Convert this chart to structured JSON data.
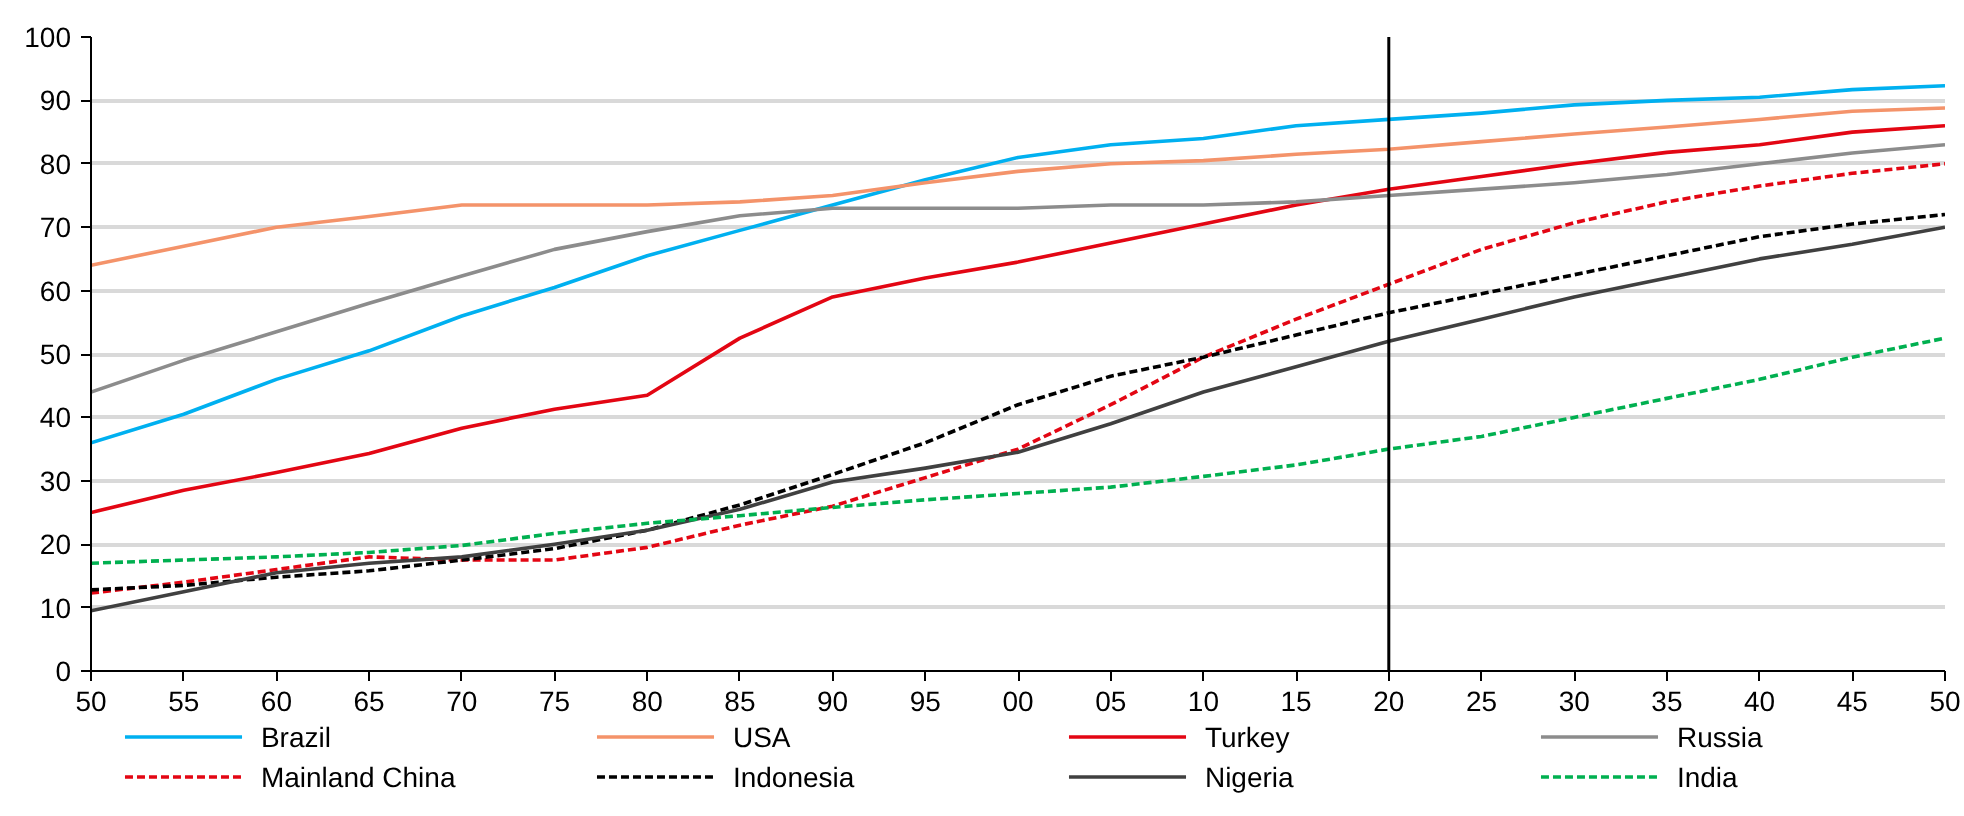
{
  "chart_data": {
    "type": "line",
    "x": [
      1950,
      1955,
      1960,
      1965,
      1970,
      1975,
      1980,
      1985,
      1990,
      1995,
      2000,
      2005,
      2010,
      2015,
      2020,
      2025,
      2030,
      2035,
      2040,
      2045,
      2050
    ],
    "series": [
      {
        "name": "Brazil",
        "color": "#00b0f0",
        "line_style": "solid",
        "values": [
          36,
          40.5,
          46,
          50.5,
          56,
          60.5,
          65.5,
          69.5,
          73.5,
          77.5,
          81,
          83,
          84,
          86,
          87,
          88,
          89.3,
          90,
          90.5,
          91.7,
          92.3
        ]
      },
      {
        "name": "USA",
        "color": "#f4936a",
        "line_style": "solid",
        "values": [
          64,
          67,
          70,
          71.7,
          73.5,
          73.5,
          73.5,
          74,
          75,
          77,
          78.8,
          80,
          80.5,
          81.5,
          82.3,
          83.5,
          84.7,
          85.8,
          87,
          88.3,
          88.8
        ]
      },
      {
        "name": "Turkey",
        "color": "#e30613",
        "line_style": "solid",
        "values": [
          25,
          28.5,
          31.3,
          34.3,
          38.3,
          41.3,
          43.5,
          52.5,
          59,
          62,
          64.5,
          67.5,
          70.5,
          73.5,
          76,
          78,
          80,
          81.8,
          83,
          85,
          86
        ]
      },
      {
        "name": "Russia",
        "color": "#8c8c8c",
        "line_style": "solid",
        "values": [
          44,
          49,
          53.5,
          58,
          62.3,
          66.5,
          69.3,
          71.8,
          73,
          73,
          73,
          73.5,
          73.5,
          74,
          75,
          76,
          77,
          78.3,
          80,
          81.7,
          83
        ]
      },
      {
        "name": "Mainland China",
        "color": "#e30613",
        "line_style": "dashed",
        "values": [
          12.3,
          14,
          16,
          18,
          17.5,
          17.5,
          19.5,
          23,
          26,
          30.5,
          35,
          42,
          49.5,
          55.5,
          61,
          66.5,
          70.7,
          74,
          76.5,
          78.5,
          80
        ]
      },
      {
        "name": "Indonesia",
        "color": "#000000",
        "line_style": "dashed",
        "values": [
          12.8,
          13.5,
          14.8,
          15.8,
          17.5,
          19.3,
          22.2,
          26.2,
          31,
          36,
          42,
          46.5,
          49.5,
          53,
          56.5,
          59.5,
          62.5,
          65.5,
          68.5,
          70.5,
          72
        ]
      },
      {
        "name": "Nigeria",
        "color": "#404040",
        "line_style": "solid",
        "values": [
          9.5,
          12.5,
          15.5,
          17,
          18,
          20,
          22.2,
          25.5,
          29.8,
          32,
          34.5,
          39,
          44,
          48,
          52,
          55.5,
          59,
          62,
          65,
          67.3,
          70
        ]
      },
      {
        "name": "India",
        "color": "#00b050",
        "line_style": "dashed",
        "values": [
          17,
          17.5,
          18,
          18.7,
          19.8,
          21.7,
          23.3,
          24.5,
          25.8,
          27,
          28,
          29,
          30.7,
          32.5,
          35,
          37,
          40,
          43,
          46,
          49.5,
          52.5
        ]
      }
    ],
    "xlim": [
      1950,
      2050
    ],
    "xticks": [
      {
        "value": 1950,
        "label": "50"
      },
      {
        "value": 1955,
        "label": "55"
      },
      {
        "value": 1960,
        "label": "60"
      },
      {
        "value": 1965,
        "label": "65"
      },
      {
        "value": 1970,
        "label": "70"
      },
      {
        "value": 1975,
        "label": "75"
      },
      {
        "value": 1980,
        "label": "80"
      },
      {
        "value": 1985,
        "label": "85"
      },
      {
        "value": 1990,
        "label": "90"
      },
      {
        "value": 1995,
        "label": "95"
      },
      {
        "value": 2000,
        "label": "00"
      },
      {
        "value": 2005,
        "label": "05"
      },
      {
        "value": 2010,
        "label": "10"
      },
      {
        "value": 2015,
        "label": "15"
      },
      {
        "value": 2020,
        "label": "20"
      },
      {
        "value": 2025,
        "label": "25"
      },
      {
        "value": 2030,
        "label": "30"
      },
      {
        "value": 2035,
        "label": "35"
      },
      {
        "value": 2040,
        "label": "40"
      },
      {
        "value": 2045,
        "label": "45"
      },
      {
        "value": 2050,
        "label": "50"
      }
    ],
    "ylim": [
      0,
      100
    ],
    "yticks": [
      0,
      10,
      20,
      30,
      40,
      50,
      60,
      70,
      80,
      90,
      100
    ],
    "ref_lines": [
      {
        "axis": "x",
        "value": 2020,
        "color": "#000000"
      }
    ],
    "grid": "y",
    "legend": "bottom",
    "marker": "none"
  }
}
